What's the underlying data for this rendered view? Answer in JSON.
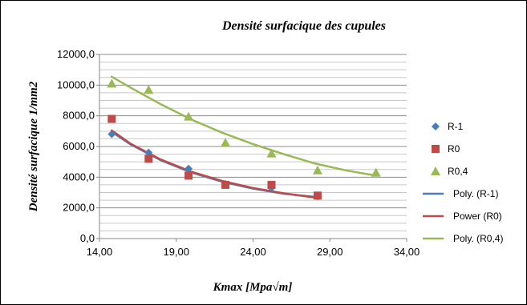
{
  "chart_data": {
    "type": "scatter",
    "title": "Densité surfacique des cupules",
    "xlabel": "Kmax  [Mpa√m]",
    "ylabel": "Densité surfacique 1/mm2",
    "xlim": [
      14,
      34
    ],
    "ylim": [
      0,
      12000
    ],
    "x_ticks": [
      "14,00",
      "19,00",
      "24,00",
      "29,00",
      "34,00"
    ],
    "y_ticks": [
      "0,0",
      "2000,0",
      "4000,0",
      "6000,0",
      "8000,0",
      "10000,0",
      "12000,0"
    ],
    "grid": "horizontal",
    "legend_position": "right",
    "series": [
      {
        "name": "R-1",
        "marker": "diamond",
        "color": "#4a7ebb",
        "x": [
          14.8,
          17.2,
          19.8,
          22.2,
          25.2,
          28.2
        ],
        "y": [
          6800,
          5600,
          4550,
          3550,
          3300,
          2750
        ]
      },
      {
        "name": "R0",
        "marker": "square",
        "color": "#be4b48",
        "x": [
          14.8,
          17.2,
          19.8,
          22.2,
          25.2,
          28.2
        ],
        "y": [
          7800,
          5200,
          4100,
          3500,
          3500,
          2800
        ]
      },
      {
        "name": "R0,4",
        "marker": "triangle",
        "color": "#98b954",
        "x": [
          14.8,
          17.2,
          19.8,
          22.2,
          25.2,
          28.2,
          32.0
        ],
        "y": [
          10100,
          9700,
          7950,
          6250,
          5550,
          4450,
          4300
        ]
      }
    ],
    "trendlines": [
      {
        "name": "Poly. (R-1)",
        "type": "polynomial",
        "color": "#4a7ebb",
        "x": [
          14.8,
          16.0,
          18.0,
          20.0,
          22.0,
          24.0,
          26.0,
          28.2
        ],
        "y": [
          6950,
          6150,
          5100,
          4300,
          3700,
          3250,
          2920,
          2700
        ]
      },
      {
        "name": "Power (R0)",
        "type": "power",
        "color": "#be4b48",
        "x": [
          14.8,
          16.0,
          18.0,
          20.0,
          22.0,
          24.0,
          26.0,
          28.2
        ],
        "y": [
          7050,
          6200,
          5150,
          4350,
          3750,
          3300,
          2950,
          2650
        ]
      },
      {
        "name": "Poly. (R0,4)",
        "type": "polynomial",
        "color": "#98b954",
        "x": [
          14.8,
          16.0,
          18.0,
          20.0,
          22.0,
          24.0,
          26.0,
          28.0,
          30.0,
          32.0
        ],
        "y": [
          10550,
          9850,
          8750,
          7750,
          6900,
          6150,
          5500,
          4900,
          4450,
          4100
        ]
      }
    ]
  }
}
